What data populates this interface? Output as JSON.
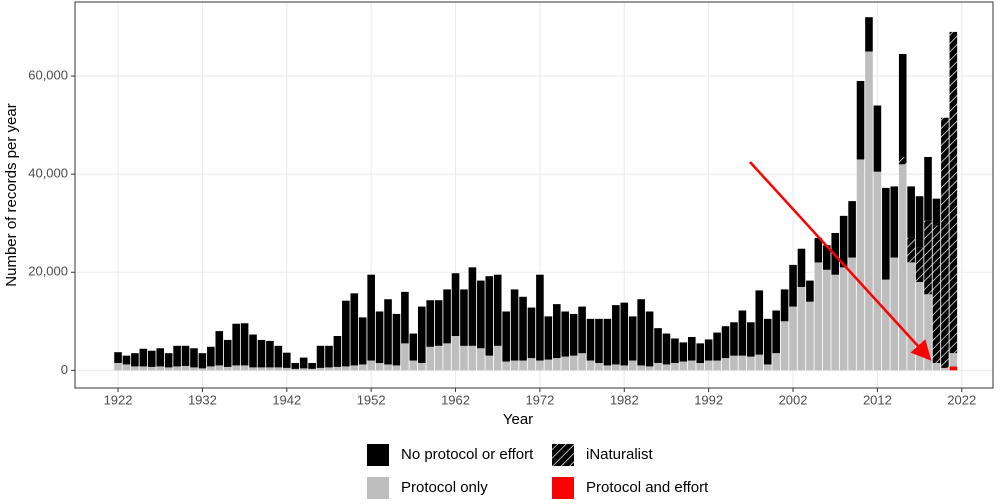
{
  "chart_data": {
    "type": "stacked-bar",
    "x_label": "Year",
    "y_label": "Number of records per year",
    "x": [
      1922,
      1923,
      1924,
      1925,
      1926,
      1927,
      1928,
      1929,
      1930,
      1931,
      1932,
      1933,
      1934,
      1935,
      1936,
      1937,
      1938,
      1939,
      1940,
      1941,
      1942,
      1943,
      1944,
      1945,
      1946,
      1947,
      1948,
      1949,
      1950,
      1951,
      1952,
      1953,
      1954,
      1955,
      1956,
      1957,
      1958,
      1959,
      1960,
      1961,
      1962,
      1963,
      1964,
      1965,
      1966,
      1967,
      1968,
      1969,
      1970,
      1971,
      1972,
      1973,
      1974,
      1975,
      1976,
      1977,
      1978,
      1979,
      1980,
      1981,
      1982,
      1983,
      1984,
      1985,
      1986,
      1987,
      1988,
      1989,
      1990,
      1991,
      1992,
      1993,
      1994,
      1995,
      1996,
      1997,
      1998,
      1999,
      2000,
      2001,
      2002,
      2003,
      2004,
      2005,
      2006,
      2007,
      2008,
      2009,
      2010,
      2011,
      2012,
      2013,
      2014,
      2015,
      2016,
      2017,
      2018,
      2019,
      2020,
      2021
    ],
    "series": [
      {
        "name": "Protocol and effort",
        "color": "#ff0000",
        "hatch": false,
        "values": [
          0,
          0,
          0,
          0,
          0,
          0,
          0,
          0,
          0,
          0,
          0,
          0,
          0,
          0,
          0,
          0,
          0,
          0,
          0,
          0,
          0,
          0,
          0,
          0,
          0,
          0,
          0,
          0,
          0,
          0,
          0,
          0,
          0,
          0,
          0,
          0,
          0,
          0,
          0,
          0,
          0,
          0,
          0,
          0,
          0,
          0,
          0,
          0,
          0,
          0,
          0,
          0,
          0,
          0,
          0,
          0,
          0,
          0,
          0,
          0,
          0,
          0,
          0,
          0,
          0,
          0,
          0,
          0,
          0,
          0,
          0,
          0,
          0,
          0,
          0,
          0,
          0,
          0,
          0,
          0,
          0,
          0,
          0,
          0,
          0,
          0,
          0,
          0,
          0,
          0,
          0,
          0,
          0,
          0,
          0,
          0,
          0,
          0,
          0,
          800
        ]
      },
      {
        "name": "Protocol only",
        "color": "#bebebe",
        "hatch": false,
        "values": [
          1500,
          1200,
          800,
          800,
          700,
          800,
          600,
          800,
          900,
          600,
          400,
          800,
          1000,
          700,
          1000,
          1000,
          600,
          600,
          600,
          600,
          500,
          300,
          400,
          300,
          500,
          600,
          700,
          800,
          1000,
          1200,
          2000,
          1500,
          1200,
          1000,
          5500,
          2000,
          1500,
          4800,
          5000,
          5500,
          7000,
          5000,
          5000,
          4500,
          3000,
          5000,
          1800,
          2000,
          2000,
          2500,
          2000,
          2200,
          2500,
          2800,
          3000,
          3500,
          2000,
          1500,
          1000,
          1200,
          1000,
          2000,
          1000,
          800,
          1500,
          1200,
          1500,
          1800,
          2000,
          1500,
          2000,
          2000,
          2500,
          3000,
          3000,
          2800,
          3200,
          1200,
          3500,
          10000,
          13000,
          17000,
          14000,
          22000,
          20500,
          19500,
          21000,
          23000,
          43000,
          65000,
          40500,
          18500,
          23000,
          42000,
          22000,
          18000,
          15500,
          1500,
          500,
          2700
        ]
      },
      {
        "name": "iNaturalist",
        "color": "#000000",
        "hatch": true,
        "values": [
          0,
          0,
          0,
          0,
          0,
          0,
          0,
          0,
          0,
          0,
          0,
          0,
          0,
          0,
          0,
          0,
          0,
          0,
          0,
          0,
          0,
          0,
          0,
          0,
          0,
          0,
          0,
          0,
          0,
          0,
          0,
          0,
          0,
          0,
          0,
          0,
          0,
          0,
          0,
          0,
          0,
          0,
          0,
          0,
          0,
          0,
          0,
          0,
          0,
          0,
          0,
          0,
          0,
          0,
          0,
          0,
          0,
          0,
          0,
          0,
          0,
          0,
          0,
          0,
          0,
          0,
          0,
          0,
          0,
          0,
          0,
          0,
          0,
          0,
          0,
          0,
          0,
          0,
          0,
          0,
          0,
          0,
          0,
          0,
          0,
          0,
          0,
          0,
          0,
          0,
          0,
          0,
          0,
          1500,
          5000,
          7000,
          15000,
          28000,
          51000,
          65500
        ]
      },
      {
        "name": "No protocol or effort",
        "color": "#000000",
        "hatch": false,
        "values": [
          2200,
          1800,
          2700,
          3600,
          3300,
          3700,
          2900,
          4200,
          4100,
          3900,
          3100,
          4000,
          7000,
          5500,
          8500,
          8600,
          6700,
          5600,
          5400,
          4400,
          3100,
          1200,
          2200,
          1200,
          4500,
          4400,
          6300,
          13400,
          14700,
          9600,
          17500,
          10500,
          13300,
          10500,
          10500,
          5500,
          11500,
          9500,
          9300,
          11000,
          12800,
          11500,
          16000,
          13800,
          16200,
          14500,
          10200,
          14500,
          13000,
          10300,
          17500,
          8800,
          11000,
          9200,
          8500,
          9500,
          8500,
          9000,
          9500,
          12100,
          12800,
          9000,
          13500,
          11200,
          7100,
          6300,
          5000,
          3900,
          4800,
          4000,
          4300,
          5700,
          6500,
          6800,
          9200,
          7000,
          13100,
          9300,
          8700,
          6500,
          8500,
          7800,
          4300,
          5000,
          5000,
          8500,
          10500,
          11500,
          16000,
          7000,
          13500,
          18700,
          14500,
          21000,
          10500,
          10500,
          13000,
          5500,
          0,
          0
        ]
      }
    ],
    "xlim": [
      1916.9,
      2025.7
    ],
    "xticks": [
      1922,
      1932,
      1942,
      1952,
      1962,
      1972,
      1982,
      1992,
      2002,
      2012,
      2022
    ],
    "ylim": [
      -3600,
      75100
    ],
    "yticks": [
      0,
      {
        "value": 20000,
        "label": "20,000"
      },
      {
        "value": 40000,
        "label": "40,000"
      },
      {
        "value": 60000,
        "label": "60,000"
      }
    ],
    "grid": true
  }
}
